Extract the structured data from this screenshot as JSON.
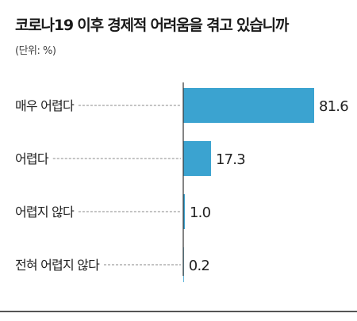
{
  "chart_data": {
    "type": "bar",
    "orientation": "horizontal",
    "title": "코로나19 이후 경제적 어려움을 겪고 있습니까",
    "subtitle": "(단위: %)",
    "categories": [
      "매우 어렵다",
      "어렵다",
      "어렵지 않다",
      "전혀 어렵지 않다"
    ],
    "values": [
      81.6,
      17.3,
      1.0,
      0.2
    ],
    "value_labels": [
      "81.6",
      "17.3",
      "1.0",
      "0.2"
    ],
    "xlim": [
      0,
      81.6
    ],
    "grid": false,
    "bar_color": "#3ba3d0",
    "axis_color": "#333333",
    "leader_color": "#888888"
  }
}
